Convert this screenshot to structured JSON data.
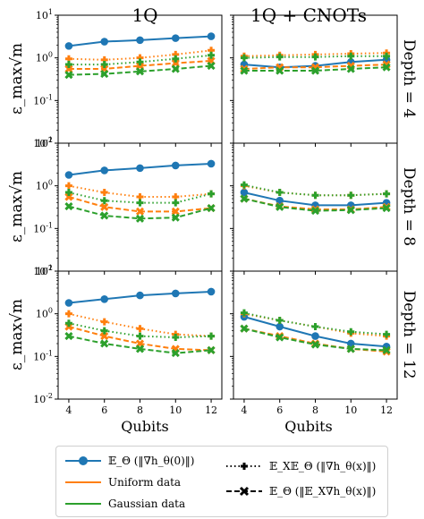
{
  "figure": {
    "column_titles": [
      "1Q",
      "1Q + CNOTs"
    ],
    "row_titles": [
      "Depth = 4",
      "Depth = 8",
      "Depth = 12"
    ],
    "ylabel": "ε_max√m",
    "xlabel": "Qubits",
    "y_tick_labels": [
      "10^1",
      "10^0",
      "10^-1",
      "10^-2"
    ],
    "x_tick_labels": [
      "4",
      "6",
      "8",
      "10",
      "12"
    ]
  },
  "legend": {
    "items": [
      {
        "label": "𝔼_Θ (‖∇h_θ(0)‖)",
        "style": "solid-marker"
      },
      {
        "label": "𝔼_X𝔼_Θ (‖∇h_θ(x)‖)",
        "style": "dotted-plus"
      },
      {
        "label": "Uniform data",
        "style": "orange-line"
      },
      {
        "label": "𝔼_Θ (‖𝔼_X∇h_θ(x)‖)",
        "style": "dashed-x"
      },
      {
        "label": "Gaussian data",
        "style": "green-line"
      }
    ]
  },
  "colors": {
    "blue": "#1f77b4",
    "orange": "#ff7f0e",
    "green": "#2ca02c"
  },
  "chart_data": [
    {
      "type": "line",
      "title": "1Q",
      "row": "Depth = 4",
      "yscale": "log",
      "ylim": [
        0.01,
        10
      ],
      "x": [
        4,
        6,
        8,
        10,
        12
      ],
      "series": [
        {
          "name": "𝔼_Θ (‖∇h_θ(0)‖)",
          "color": "#1f77b4",
          "style": "solid",
          "values": [
            1.9,
            2.4,
            2.6,
            2.9,
            3.2
          ]
        },
        {
          "name": "𝔼_X𝔼_Θ (‖∇h_θ(x)‖) — Uniform data",
          "color": "#ff7f0e",
          "style": "dotted",
          "values": [
            0.95,
            0.9,
            1.0,
            1.2,
            1.5
          ]
        },
        {
          "name": "𝔼_Θ (‖𝔼_X∇h_θ(x)‖) — Uniform data",
          "color": "#ff7f0e",
          "style": "dashed",
          "values": [
            0.55,
            0.55,
            0.65,
            0.75,
            0.85
          ]
        },
        {
          "name": "𝔼_X𝔼_Θ (‖∇h_θ(x)‖) — Gaussian data",
          "color": "#2ca02c",
          "style": "dotted",
          "values": [
            0.7,
            0.7,
            0.8,
            0.95,
            1.15
          ]
        },
        {
          "name": "𝔼_Θ (‖𝔼_X∇h_θ(x)‖) — Gaussian data",
          "color": "#2ca02c",
          "style": "dashed",
          "values": [
            0.4,
            0.42,
            0.48,
            0.55,
            0.65
          ]
        }
      ]
    },
    {
      "type": "line",
      "title": "1Q + CNOTs",
      "row": "Depth = 4",
      "yscale": "log",
      "ylim": [
        0.01,
        10
      ],
      "x": [
        4,
        6,
        8,
        10,
        12
      ],
      "series": [
        {
          "name": "𝔼_Θ (‖∇h_θ(0)‖)",
          "color": "#1f77b4",
          "style": "solid",
          "values": [
            0.7,
            0.6,
            0.65,
            0.8,
            0.9
          ]
        },
        {
          "name": "𝔼_X𝔼_Θ (‖∇h_θ(x)‖) — Uniform data",
          "color": "#ff7f0e",
          "style": "dotted",
          "values": [
            1.1,
            1.15,
            1.2,
            1.25,
            1.3
          ]
        },
        {
          "name": "𝔼_Θ (‖𝔼_X∇h_θ(x)‖) — Uniform data",
          "color": "#ff7f0e",
          "style": "dashed",
          "values": [
            0.55,
            0.6,
            0.6,
            0.65,
            0.7
          ]
        },
        {
          "name": "𝔼_X𝔼_Θ (‖∇h_θ(x)‖) — Gaussian data",
          "color": "#2ca02c",
          "style": "dotted",
          "values": [
            1.0,
            1.05,
            1.05,
            1.1,
            1.1
          ]
        },
        {
          "name": "𝔼_Θ (‖𝔼_X∇h_θ(x)‖) — Gaussian data",
          "color": "#2ca02c",
          "style": "dashed",
          "values": [
            0.5,
            0.5,
            0.5,
            0.55,
            0.6
          ]
        }
      ]
    },
    {
      "type": "line",
      "title": "1Q",
      "row": "Depth = 8",
      "yscale": "log",
      "ylim": [
        0.01,
        10
      ],
      "x": [
        4,
        6,
        8,
        10,
        12
      ],
      "series": [
        {
          "name": "𝔼_Θ (‖∇h_θ(0)‖)",
          "color": "#1f77b4",
          "style": "solid",
          "values": [
            1.8,
            2.3,
            2.6,
            3.0,
            3.3
          ]
        },
        {
          "name": "𝔼_X𝔼_Θ (‖∇h_θ(x)‖) — Uniform data",
          "color": "#ff7f0e",
          "style": "dotted",
          "values": [
            1.0,
            0.7,
            0.55,
            0.55,
            0.65
          ]
        },
        {
          "name": "𝔼_Θ (‖𝔼_X∇h_θ(x)‖) — Uniform data",
          "color": "#ff7f0e",
          "style": "dashed",
          "values": [
            0.55,
            0.32,
            0.25,
            0.25,
            0.3
          ]
        },
        {
          "name": "𝔼_X𝔼_Θ (‖∇h_θ(x)‖) — Gaussian data",
          "color": "#2ca02c",
          "style": "dotted",
          "values": [
            0.7,
            0.45,
            0.4,
            0.4,
            0.65
          ]
        },
        {
          "name": "𝔼_Θ (‖𝔼_X∇h_θ(x)‖) — Gaussian data",
          "color": "#2ca02c",
          "style": "dashed",
          "values": [
            0.33,
            0.2,
            0.17,
            0.18,
            0.3
          ]
        }
      ]
    },
    {
      "type": "line",
      "title": "1Q + CNOTs",
      "row": "Depth = 8",
      "yscale": "log",
      "ylim": [
        0.01,
        10
      ],
      "x": [
        4,
        6,
        8,
        10,
        12
      ],
      "series": [
        {
          "name": "𝔼_Θ (‖∇h_θ(0)‖)",
          "color": "#1f77b4",
          "style": "solid",
          "values": [
            0.7,
            0.45,
            0.35,
            0.35,
            0.4
          ]
        },
        {
          "name": "𝔼_X𝔼_Θ (‖∇h_θ(x)‖) — Uniform data",
          "color": "#ff7f0e",
          "style": "dotted",
          "values": [
            1.0,
            0.7,
            0.6,
            0.6,
            0.65
          ]
        },
        {
          "name": "𝔼_Θ (‖𝔼_X∇h_θ(x)‖) — Uniform data",
          "color": "#ff7f0e",
          "style": "dashed",
          "values": [
            0.5,
            0.33,
            0.28,
            0.28,
            0.32
          ]
        },
        {
          "name": "𝔼_X𝔼_Θ (‖∇h_θ(x)‖) — Gaussian data",
          "color": "#2ca02c",
          "style": "dotted",
          "values": [
            1.05,
            0.7,
            0.6,
            0.6,
            0.65
          ]
        },
        {
          "name": "𝔼_Θ (‖𝔼_X∇h_θ(x)‖) — Gaussian data",
          "color": "#2ca02c",
          "style": "dashed",
          "values": [
            0.5,
            0.32,
            0.26,
            0.27,
            0.3
          ]
        }
      ]
    },
    {
      "type": "line",
      "title": "1Q",
      "row": "Depth = 12",
      "yscale": "log",
      "ylim": [
        0.01,
        10
      ],
      "x": [
        4,
        6,
        8,
        10,
        12
      ],
      "series": [
        {
          "name": "𝔼_Θ (‖∇h_θ(0)‖)",
          "color": "#1f77b4",
          "style": "solid",
          "values": [
            1.8,
            2.2,
            2.7,
            3.0,
            3.3
          ]
        },
        {
          "name": "𝔼_X𝔼_Θ (‖∇h_θ(x)‖) — Uniform data",
          "color": "#ff7f0e",
          "style": "dotted",
          "values": [
            1.0,
            0.65,
            0.45,
            0.33,
            0.3
          ]
        },
        {
          "name": "𝔼_Θ (‖𝔼_X∇h_θ(x)‖) — Uniform data",
          "color": "#ff7f0e",
          "style": "dashed",
          "values": [
            0.5,
            0.3,
            0.2,
            0.15,
            0.14
          ]
        },
        {
          "name": "𝔼_X𝔼_Θ (‖∇h_θ(x)‖) — Gaussian data",
          "color": "#2ca02c",
          "style": "dotted",
          "values": [
            0.6,
            0.4,
            0.3,
            0.28,
            0.3
          ]
        },
        {
          "name": "𝔼_Θ (‖𝔼_X∇h_θ(x)‖) — Gaussian data",
          "color": "#2ca02c",
          "style": "dashed",
          "values": [
            0.3,
            0.2,
            0.15,
            0.12,
            0.14
          ]
        }
      ]
    },
    {
      "type": "line",
      "title": "1Q + CNOTs",
      "row": "Depth = 12",
      "yscale": "log",
      "ylim": [
        0.01,
        10
      ],
      "x": [
        4,
        6,
        8,
        10,
        12
      ],
      "series": [
        {
          "name": "𝔼_Θ (‖∇h_θ(0)‖)",
          "color": "#1f77b4",
          "style": "solid",
          "values": [
            0.85,
            0.5,
            0.3,
            0.2,
            0.17
          ]
        },
        {
          "name": "𝔼_X𝔼_Θ (‖∇h_θ(x)‖) — Uniform data",
          "color": "#ff7f0e",
          "style": "dotted",
          "values": [
            1.0,
            0.7,
            0.5,
            0.35,
            0.3
          ]
        },
        {
          "name": "𝔼_Θ (‖𝔼_X∇h_θ(x)‖) — Uniform data",
          "color": "#ff7f0e",
          "style": "dashed",
          "values": [
            0.45,
            0.3,
            0.2,
            0.15,
            0.13
          ]
        },
        {
          "name": "𝔼_X𝔼_Θ (‖∇h_θ(x)‖) — Gaussian data",
          "color": "#2ca02c",
          "style": "dotted",
          "values": [
            1.05,
            0.7,
            0.5,
            0.38,
            0.33
          ]
        },
        {
          "name": "𝔼_Θ (‖𝔼_X∇h_θ(x)‖) — Gaussian data",
          "color": "#2ca02c",
          "style": "dashed",
          "values": [
            0.45,
            0.28,
            0.19,
            0.15,
            0.14
          ]
        }
      ]
    }
  ]
}
